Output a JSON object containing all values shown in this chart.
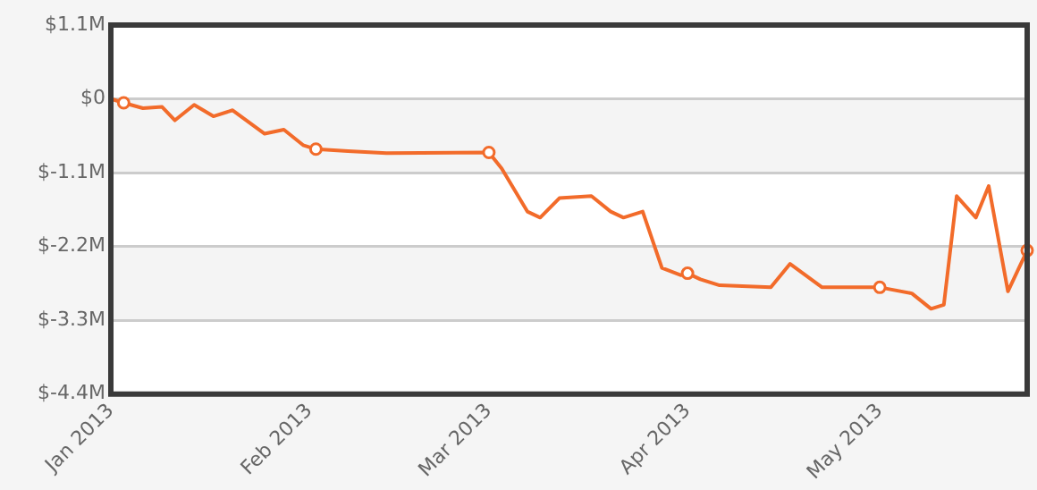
{
  "chart_data": {
    "type": "line",
    "x": [
      "2013-01-01",
      "2013-01-03",
      "2013-01-06",
      "2013-01-09",
      "2013-01-11",
      "2013-01-14",
      "2013-01-17",
      "2013-01-20",
      "2013-01-25",
      "2013-01-28",
      "2013-01-31",
      "2013-02-02",
      "2013-02-07",
      "2013-02-13",
      "2013-03-01",
      "2013-03-03",
      "2013-03-07",
      "2013-03-09",
      "2013-03-12",
      "2013-03-17",
      "2013-03-20",
      "2013-03-22",
      "2013-03-25",
      "2013-03-28",
      "2013-03-31",
      "2013-04-01",
      "2013-04-03",
      "2013-04-06",
      "2013-04-14",
      "2013-04-17",
      "2013-04-22",
      "2013-05-01",
      "2013-05-06",
      "2013-05-09",
      "2013-05-11",
      "2013-05-13",
      "2013-05-16",
      "2013-05-18",
      "2013-05-21",
      "2013-05-24"
    ],
    "series": [
      {
        "color": "#f26b2a",
        "marker": "none",
        "values": [
          0,
          -0.06,
          -0.14,
          -0.12,
          -0.32,
          -0.09,
          -0.26,
          -0.17,
          -0.52,
          -0.46,
          -0.69,
          -0.75,
          -0.78,
          -0.81,
          -0.8,
          -1.04,
          -1.68,
          -1.77,
          -1.48,
          -1.45,
          -1.68,
          -1.77,
          -1.68,
          -2.52,
          -2.63,
          -2.6,
          -2.69,
          -2.78,
          -2.81,
          -2.46,
          -2.81,
          -2.81,
          -2.9,
          -3.13,
          -3.07,
          -1.45,
          -1.77,
          -1.3,
          -2.87,
          -2.26
        ]
      },
      {
        "type": "scatter",
        "color": "#f26b2a",
        "marker": "circle",
        "x": [
          "2013-01-03",
          "2013-02-02",
          "2013-03-01",
          "2013-04-01",
          "2013-05-01",
          "2013-05-24"
        ],
        "values": [
          -0.06,
          -0.75,
          -0.8,
          -2.6,
          -2.81,
          -2.26
        ]
      }
    ],
    "xlim": [
      "2013-01-01",
      "2013-05-24"
    ],
    "xticks": [
      {
        "value": "2013-01-01",
        "label": "Jan 2013"
      },
      {
        "value": "2013-02-01",
        "label": "Feb 2013"
      },
      {
        "value": "2013-03-01",
        "label": "Mar 2013"
      },
      {
        "value": "2013-04-01",
        "label": "Apr 2013"
      },
      {
        "value": "2013-05-01",
        "label": "May 2013"
      }
    ],
    "ylim": [
      -4.4,
      1.1
    ],
    "yticks": [
      {
        "value": -4.4,
        "label": "$-4.4M"
      },
      {
        "value": -3.3,
        "label": "$-3.3M"
      },
      {
        "value": -2.2,
        "label": "$-2.2M"
      },
      {
        "value": -1.1,
        "label": "$-1.1M"
      },
      {
        "value": 0,
        "label": "$0"
      },
      {
        "value": 1.1,
        "label": "$1.1M"
      }
    ],
    "grid": "y",
    "legend": false
  }
}
